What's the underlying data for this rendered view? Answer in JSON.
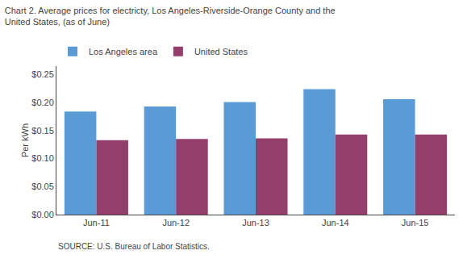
{
  "chart_data": {
    "type": "bar",
    "title": "Chart 2. Average prices for electricty, Los Angeles-Riverside-Orange County and the\nUnited States, (as of June)",
    "ylabel": "Per kWh",
    "annotations": [
      "SOURCE: U.S. Bureau of Labor Statistics."
    ],
    "categories": [
      "Jun-11",
      "Jun-12",
      "Jun-13",
      "Jun-14",
      "Jun-15"
    ],
    "series": [
      {
        "name": "Los Angeles area",
        "color": "#5B9BD5",
        "values": [
          0.184,
          0.193,
          0.201,
          0.224,
          0.206
        ]
      },
      {
        "name": "United States",
        "color": "#943F6B",
        "values": [
          0.133,
          0.135,
          0.136,
          0.143,
          0.143
        ]
      }
    ],
    "ylim": [
      0,
      0.265
    ],
    "yticks": [
      {
        "value": 0.0,
        "label": "$0.00"
      },
      {
        "value": 0.05,
        "label": "$0.05"
      },
      {
        "value": 0.1,
        "label": "$0.10"
      },
      {
        "value": 0.15,
        "label": "$0.15"
      },
      {
        "value": 0.2,
        "label": "$0.20"
      },
      {
        "value": 0.25,
        "label": "$0.25"
      }
    ],
    "grid": false,
    "legend": "upper left"
  }
}
